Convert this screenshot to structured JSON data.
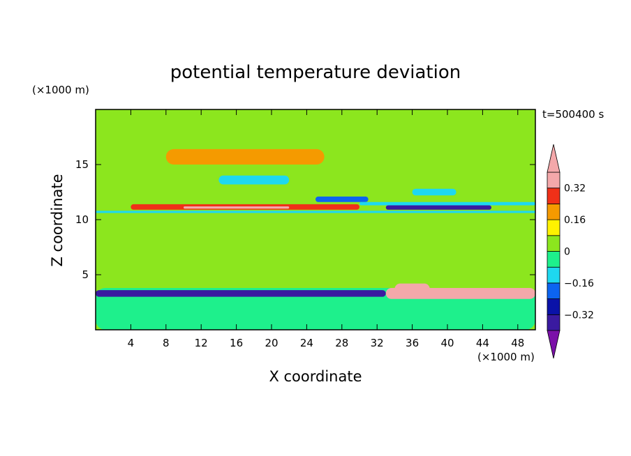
{
  "chart_data": {
    "type": "heatmap",
    "title": "potential temperature deviation",
    "time_label": "t=500400 s",
    "xlabel": "X coordinate",
    "ylabel": "Z coordinate",
    "x_unit": "(×1000 m)",
    "y_unit": "(×1000 m)",
    "xlim": [
      0,
      50
    ],
    "ylim": [
      0,
      20
    ],
    "x_ticks": [
      4,
      8,
      12,
      16,
      20,
      24,
      28,
      32,
      36,
      40,
      44,
      48
    ],
    "y_ticks": [
      5,
      10,
      15
    ],
    "colorbar": {
      "levels": [
        -0.4,
        -0.32,
        -0.24,
        -0.16,
        -0.08,
        0,
        0.08,
        0.16,
        0.24,
        0.32,
        0.4
      ],
      "colors": [
        "#7b10a8",
        "#3a1aa0",
        "#0a12a8",
        "#0c64f0",
        "#1ed8f0",
        "#1ef08c",
        "#8ce61e",
        "#fff200",
        "#f59a00",
        "#f03018",
        "#f4a8aa",
        "#f4a8aa"
      ],
      "tick_labels": [
        "0.32",
        "0.16",
        "0",
        "−0.16",
        "−0.32"
      ],
      "tick_values": [
        0.32,
        0.16,
        0,
        -0.16,
        -0.32
      ]
    },
    "features": [
      {
        "x0": 0,
        "x1": 50,
        "z0": 0,
        "z1": 20,
        "value": 0.04
      },
      {
        "x0": 0,
        "x1": 50,
        "z0": 10.6,
        "z1": 20,
        "value": 0.02
      },
      {
        "x0": 0,
        "x1": 50,
        "z0": 0,
        "z1": 3.8,
        "value": -0.04
      },
      {
        "x0": 8,
        "x1": 26,
        "z0": 15.0,
        "z1": 16.4,
        "value": 0.2
      },
      {
        "x0": 14,
        "x1": 22,
        "z0": 13.2,
        "z1": 14.0,
        "value": -0.1
      },
      {
        "x0": 25,
        "x1": 31,
        "z0": 11.6,
        "z1": 12.1,
        "value": -0.2
      },
      {
        "x0": 36,
        "x1": 41,
        "z0": 12.2,
        "z1": 12.8,
        "value": -0.1
      },
      {
        "x0": 0,
        "x1": 50,
        "z0": 10.6,
        "z1": 10.8,
        "value": -0.1
      },
      {
        "x0": 4,
        "x1": 30,
        "z0": 10.9,
        "z1": 11.4,
        "value": 0.24
      },
      {
        "x0": 10,
        "x1": 22,
        "z0": 11.0,
        "z1": 11.2,
        "value": 0.34
      },
      {
        "x0": 33,
        "x1": 45,
        "z0": 10.9,
        "z1": 11.3,
        "value": -0.38
      },
      {
        "x0": 30,
        "x1": 50,
        "z0": 11.3,
        "z1": 11.6,
        "value": -0.12
      },
      {
        "x0": 0,
        "x1": 33,
        "z0": 3.0,
        "z1": 3.6,
        "value": -0.34
      },
      {
        "x0": 33,
        "x1": 50,
        "z0": 2.8,
        "z1": 3.8,
        "value": 0.36
      },
      {
        "x0": 34,
        "x1": 38,
        "z0": 3.2,
        "z1": 4.2,
        "value": 0.44
      }
    ]
  }
}
